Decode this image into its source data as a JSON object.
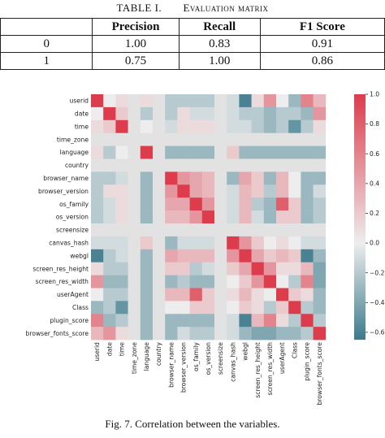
{
  "table": {
    "caption_prefix": "TABLE I.",
    "caption_title": "Evaluation matrix",
    "headers": [
      "",
      "Precision",
      "Recall",
      "F1 Score"
    ],
    "rows": [
      [
        "0",
        "1.00",
        "0.83",
        "0.91"
      ],
      [
        "1",
        "0.75",
        "1.00",
        "0.86"
      ]
    ]
  },
  "figure_caption": "Fig. 7.   Correlation between the variables.",
  "chart_data": {
    "type": "heatmap",
    "variables": [
      "userid",
      "date",
      "time",
      "time_zone",
      "language",
      "country",
      "browser_name",
      "browser_version",
      "os_family",
      "os_version",
      "screensize",
      "canvas_hash",
      "webgl",
      "screen_res_height",
      "screen_res_width",
      "userAgent",
      "Class",
      "plugin_score",
      "browser_fonts_score"
    ],
    "constant_variables": [
      "time_zone",
      "country",
      "screensize"
    ],
    "matrix": [
      [
        1.0,
        0.0,
        0.1,
        null,
        0.1,
        null,
        -0.2,
        -0.2,
        -0.2,
        -0.2,
        null,
        -0.1,
        -0.6,
        0.1,
        0.5,
        0.0,
        -0.3,
        0.6,
        0.3
      ],
      [
        0.0,
        1.0,
        0.2,
        null,
        -0.2,
        null,
        -0.2,
        0.1,
        -0.1,
        -0.1,
        null,
        -0.1,
        -0.2,
        -0.2,
        -0.3,
        -0.2,
        -0.2,
        -0.3,
        0.5
      ],
      [
        0.1,
        0.2,
        1.0,
        null,
        0.0,
        null,
        -0.1,
        0.1,
        0.1,
        0.1,
        null,
        -0.1,
        -0.1,
        -0.2,
        -0.3,
        -0.2,
        -0.5,
        -0.2,
        0.1
      ],
      [
        null,
        null,
        null,
        null,
        null,
        null,
        null,
        null,
        null,
        null,
        null,
        null,
        null,
        null,
        null,
        null,
        null,
        null,
        null
      ],
      [
        0.1,
        -0.2,
        0.0,
        null,
        1.0,
        null,
        -0.3,
        -0.3,
        -0.3,
        -0.3,
        null,
        0.2,
        -0.3,
        -0.3,
        -0.3,
        -0.3,
        -0.3,
        -0.3,
        -0.3
      ],
      [
        null,
        null,
        null,
        null,
        null,
        null,
        null,
        null,
        null,
        null,
        null,
        null,
        null,
        null,
        null,
        null,
        null,
        null,
        null
      ],
      [
        -0.2,
        -0.2,
        -0.1,
        null,
        -0.3,
        null,
        1.0,
        0.5,
        0.4,
        0.3,
        null,
        -0.3,
        0.4,
        0.2,
        -0.3,
        0.3,
        0.0,
        -0.3,
        -0.3
      ],
      [
        -0.2,
        0.1,
        0.1,
        null,
        -0.3,
        null,
        0.5,
        1.0,
        0.4,
        0.3,
        null,
        -0.1,
        0.3,
        0.2,
        -0.2,
        0.3,
        0.0,
        -0.3,
        -0.1
      ],
      [
        -0.2,
        -0.1,
        0.1,
        null,
        -0.3,
        null,
        0.4,
        0.4,
        1.0,
        0.5,
        null,
        -0.1,
        0.3,
        -0.2,
        -0.3,
        0.8,
        0.2,
        -0.3,
        -0.2
      ],
      [
        -0.2,
        -0.1,
        0.1,
        null,
        -0.3,
        null,
        0.3,
        0.3,
        0.5,
        1.0,
        null,
        -0.1,
        0.3,
        -0.1,
        -0.3,
        0.2,
        0.2,
        -0.3,
        -0.2
      ],
      [
        null,
        null,
        null,
        null,
        null,
        null,
        null,
        null,
        null,
        null,
        null,
        null,
        null,
        null,
        null,
        null,
        null,
        null,
        null
      ],
      [
        -0.1,
        -0.1,
        -0.1,
        null,
        0.2,
        null,
        -0.3,
        -0.1,
        -0.1,
        -0.1,
        null,
        1.0,
        0.5,
        0.2,
        0.0,
        0.1,
        0.0,
        -0.1,
        -0.1
      ],
      [
        -0.6,
        -0.2,
        -0.1,
        null,
        -0.3,
        null,
        0.4,
        0.3,
        0.3,
        0.3,
        null,
        0.5,
        1.0,
        0.4,
        0.2,
        0.3,
        0.2,
        -0.6,
        -0.3
      ],
      [
        0.1,
        -0.2,
        -0.2,
        null,
        -0.3,
        null,
        0.2,
        0.2,
        -0.2,
        -0.1,
        null,
        0.2,
        0.4,
        1.0,
        0.5,
        0.1,
        0.1,
        0.3,
        -0.4
      ],
      [
        0.5,
        -0.3,
        -0.3,
        null,
        -0.3,
        null,
        -0.3,
        -0.2,
        -0.3,
        -0.3,
        null,
        0.0,
        0.2,
        0.5,
        1.0,
        0.0,
        -0.2,
        0.6,
        -0.4
      ],
      [
        0.0,
        -0.2,
        -0.2,
        null,
        -0.3,
        null,
        0.3,
        0.3,
        0.8,
        0.2,
        null,
        0.1,
        0.3,
        0.1,
        0.0,
        1.0,
        0.2,
        0.1,
        -0.3
      ],
      [
        -0.3,
        -0.2,
        -0.5,
        null,
        -0.3,
        null,
        0.0,
        0.0,
        0.2,
        0.2,
        null,
        0.0,
        0.2,
        0.1,
        -0.2,
        0.2,
        1.0,
        -0.2,
        -0.3
      ],
      [
        0.6,
        -0.3,
        -0.2,
        null,
        -0.3,
        null,
        -0.3,
        -0.3,
        -0.3,
        -0.3,
        null,
        -0.1,
        -0.6,
        0.3,
        0.6,
        0.1,
        -0.2,
        1.0,
        -0.2
      ],
      [
        0.3,
        0.5,
        0.1,
        null,
        -0.3,
        null,
        -0.3,
        -0.1,
        -0.2,
        -0.2,
        null,
        -0.1,
        -0.3,
        -0.4,
        -0.4,
        -0.3,
        -0.3,
        -0.2,
        1.0
      ]
    ],
    "vmin": -0.65,
    "vmax": 1.0,
    "colorbar_ticks": [
      1.0,
      0.8,
      0.6,
      0.4,
      0.2,
      0.0,
      -0.2,
      -0.4,
      -0.6
    ],
    "colorbar_tick_labels": [
      "1.0",
      "0.8",
      "0.6",
      "0.4",
      "0.2",
      "0.0",
      "−0.2",
      "−0.4",
      "−0.6"
    ],
    "colors": {
      "negative": "#3b7a8c",
      "neutral": "#ededed",
      "positive": "#dc3c4c",
      "missing": "#e2e2e2"
    },
    "colorbar_position": "right"
  }
}
